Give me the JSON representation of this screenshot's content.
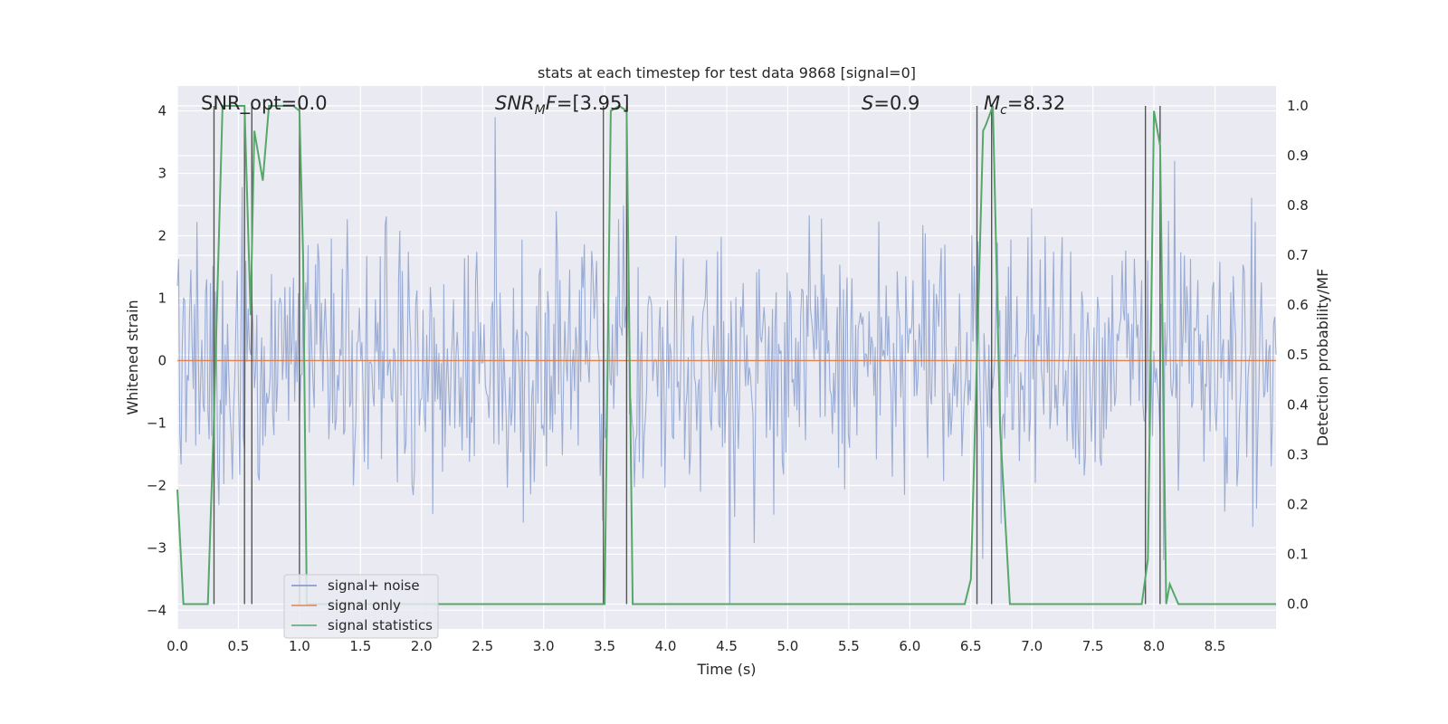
{
  "chart_data": {
    "type": "line",
    "title": "stats at each timestep for test data 9868 [signal=0]",
    "xlabel": "Time (s)",
    "ylabel_left": "Whitened strain",
    "ylabel_right": "Detection probability/MF",
    "xlim": [
      0.0,
      9.0
    ],
    "ylim_left": [
      -4.3,
      4.4
    ],
    "ylim_right": [
      -0.05,
      1.04
    ],
    "x_ticks": [
      "0.0",
      "0.5",
      "1.0",
      "1.5",
      "2.0",
      "2.5",
      "3.0",
      "3.5",
      "4.0",
      "4.5",
      "5.0",
      "5.5",
      "6.0",
      "6.5",
      "7.0",
      "7.5",
      "8.0",
      "8.5"
    ],
    "y_left_ticks": [
      "4",
      "3",
      "2",
      "1",
      "0",
      "−1",
      "−2",
      "−3",
      "−4"
    ],
    "y_right_ticks": [
      "1.0",
      "0.9",
      "0.8",
      "0.7",
      "0.6",
      "0.5",
      "0.4",
      "0.3",
      "0.2",
      "0.1",
      "0.0"
    ],
    "grid": true,
    "annotations": {
      "snr_opt": {
        "name": "SNR_opt",
        "value": "0.0"
      },
      "snr_mf": {
        "name": "SNR",
        "sub": "M",
        "tail": "F",
        "value": "[3.95]"
      },
      "s_stat": {
        "name": "S",
        "value": "0.9"
      },
      "chirp_mass": {
        "name": "M",
        "sub": "c",
        "value": "8.32"
      }
    },
    "legend": {
      "placement": "lower-left",
      "entries": [
        "signal+ noise",
        "signal only",
        "signal statistics"
      ]
    },
    "series": [
      {
        "name": "signal+ noise",
        "color": "#7891c8",
        "axis": "left",
        "description_values": {
          "n_points": 900,
          "amplitude_core": [
            -1.5,
            1.7
          ],
          "extreme_range": [
            -3.9,
            3.9
          ],
          "seed": 9868
        }
      },
      {
        "name": "signal only",
        "color": "#dd8452",
        "axis": "left",
        "x": [
          0.0,
          9.0
        ],
        "y": [
          0.0,
          0.0
        ]
      },
      {
        "name": "signal statistics",
        "color": "#55a868",
        "axis": "right",
        "x": [
          0.0,
          0.05,
          0.1,
          0.15,
          0.2,
          0.25,
          0.3,
          0.37,
          0.42,
          0.5,
          0.55,
          0.6,
          0.63,
          0.7,
          0.75,
          0.8,
          0.9,
          0.95,
          1.0,
          1.03,
          1.06,
          1.1,
          1.15,
          1.5,
          2.0,
          2.5,
          3.0,
          3.45,
          3.5,
          3.55,
          3.62,
          3.68,
          3.73,
          3.8,
          4.0,
          5.0,
          6.0,
          6.4,
          6.45,
          6.5,
          6.6,
          6.62,
          6.68,
          6.74,
          6.82,
          6.9,
          7.0,
          7.5,
          7.85,
          7.9,
          7.95,
          8.0,
          8.05,
          8.1,
          8.13,
          8.2,
          8.5,
          9.0
        ],
        "y": [
          0.23,
          0.0,
          0.0,
          0.0,
          0.0,
          0.0,
          0.38,
          1.0,
          1.0,
          1.0,
          1.0,
          0.58,
          0.95,
          0.85,
          1.0,
          1.0,
          1.0,
          1.0,
          0.99,
          0.7,
          0.0,
          0.0,
          0.0,
          0.0,
          0.0,
          0.0,
          0.0,
          0.0,
          0.0,
          0.99,
          1.0,
          0.99,
          0.0,
          0.0,
          0.0,
          0.0,
          0.0,
          0.0,
          0.0,
          0.05,
          0.95,
          0.96,
          1.0,
          0.35,
          0.0,
          0.0,
          0.0,
          0.0,
          0.0,
          0.0,
          0.09,
          0.99,
          0.92,
          0.0,
          0.04,
          0.0,
          0.0,
          0.0
        ]
      }
    ],
    "vertical_markers": {
      "color": "#555555",
      "x": [
        0.3,
        0.55,
        0.61,
        1.0,
        3.49,
        3.68,
        6.55,
        6.67,
        7.93,
        8.05
      ]
    }
  }
}
